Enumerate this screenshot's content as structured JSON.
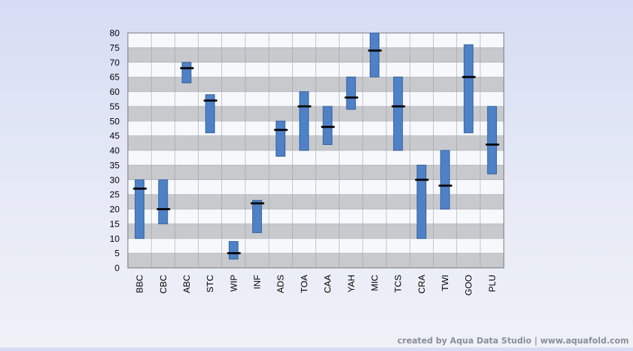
{
  "chart_data": {
    "type": "range-bar",
    "categories": [
      "BBC",
      "CBC",
      "ABC",
      "STC",
      "WIP",
      "INF",
      "ADS",
      "TOA",
      "CAA",
      "YAH",
      "MIC",
      "TCS",
      "CRA",
      "TWI",
      "GOO",
      "PLU"
    ],
    "low": [
      10,
      15,
      63,
      46,
      3,
      12,
      38,
      40,
      42,
      54,
      65,
      40,
      10,
      20,
      46,
      32
    ],
    "high": [
      30,
      30,
      70,
      59,
      9,
      23,
      50,
      60,
      55,
      65,
      80,
      65,
      35,
      40,
      76,
      55
    ],
    "close": [
      27,
      20,
      68,
      57,
      5,
      22,
      47,
      55,
      48,
      58,
      74,
      55,
      30,
      28,
      65,
      42
    ],
    "ylim": [
      0,
      80
    ],
    "yticks": [
      "0",
      "5",
      "10",
      "15",
      "20",
      "25",
      "30",
      "35",
      "40",
      "45",
      "50",
      "55",
      "60",
      "65",
      "70",
      "75",
      "80"
    ],
    "title": "",
    "xlabel": "",
    "ylabel": "",
    "grid": true,
    "colors": {
      "bar": "#4f81c7",
      "bar_stroke": "#2f5d9c",
      "marker": "#000000",
      "band_dark": "#c8c9cd",
      "band_light": "#f7f8fb"
    }
  },
  "footer": {
    "credit": "created by Aqua Data Studio | www.aquafold.com"
  }
}
